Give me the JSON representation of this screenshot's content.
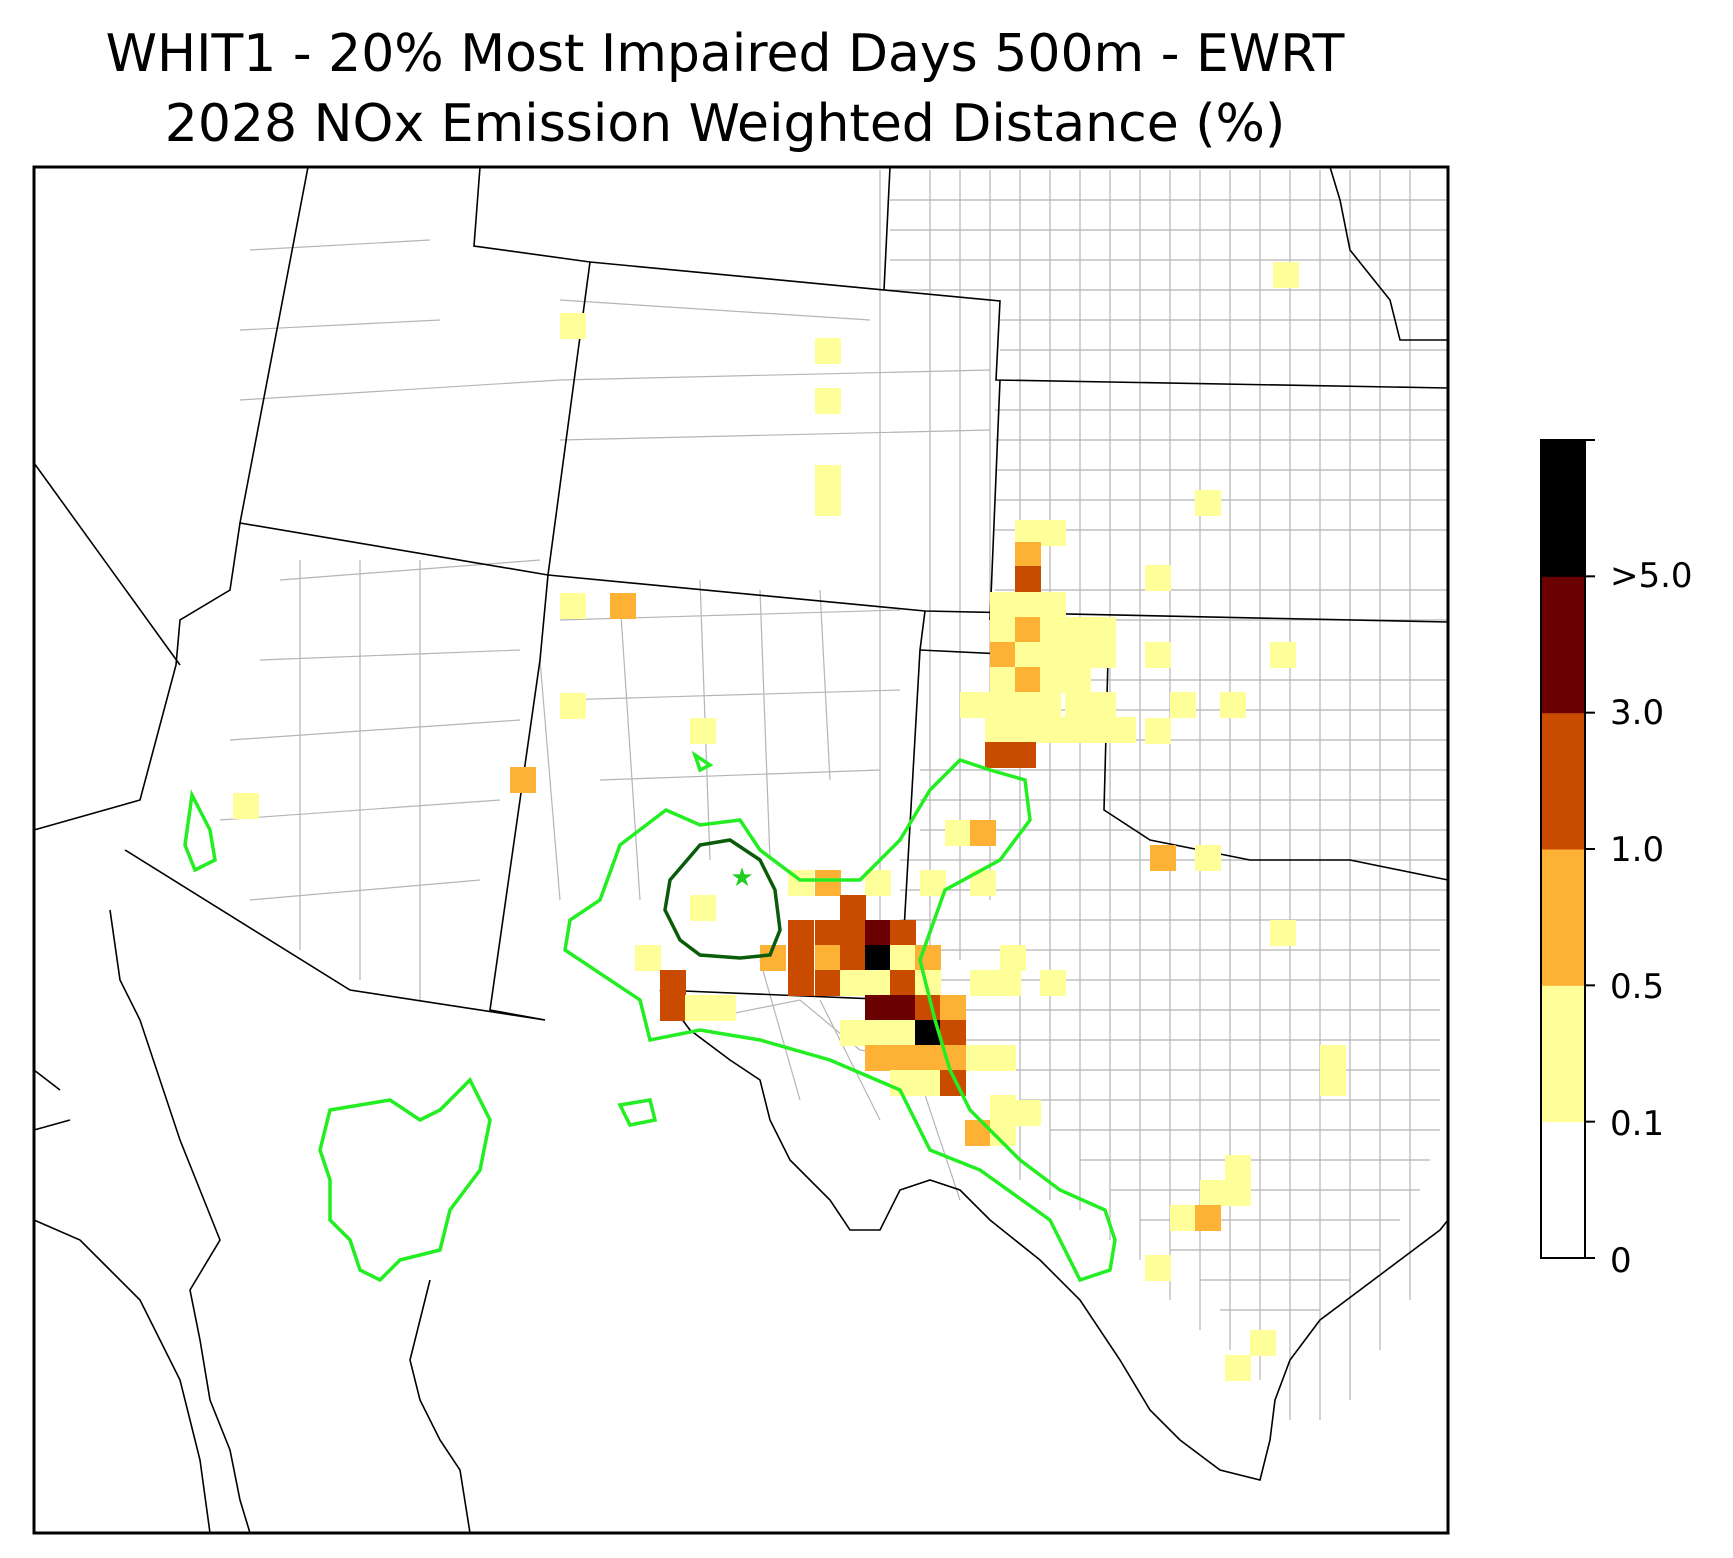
{
  "title": {
    "line1": "WHIT1 - 20% Most Impaired Days 500m - EWRT",
    "line2": "2028 NOx Emission Weighted Distance (%)"
  },
  "colorbar": {
    "labels": [
      "0",
      "0.1",
      "0.5",
      "1.0",
      "3.0",
      ">5.0"
    ],
    "colors": [
      "#ffffff",
      "#ffff99",
      "#fdb235",
      "#c84b00",
      "#6b0000",
      "#000000"
    ]
  },
  "contour_colors": {
    "outer": "#22ee22",
    "inner": "#0a5c0a"
  },
  "site_marker_color": "#22cc22"
}
